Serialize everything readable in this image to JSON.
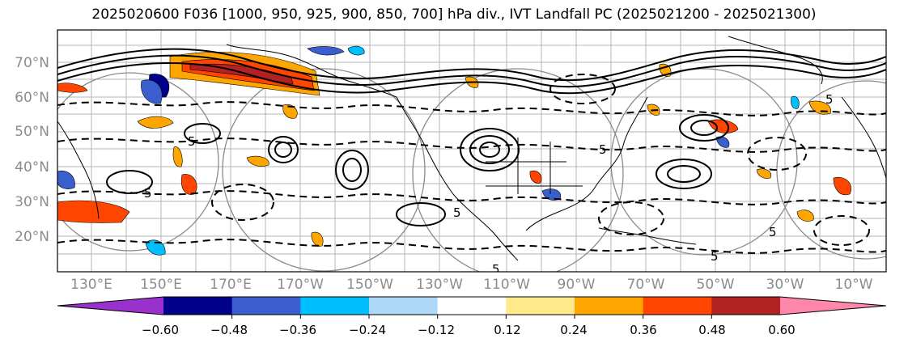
{
  "title": "2025020600 F036 [1000, 950, 925, 900, 850, 700] hPa div., IVT Landfall PC (2025021200 - 2025021300)",
  "lat_labels": [
    "70°N",
    "60°N",
    "50°N",
    "40°N",
    "30°N",
    "20°N"
  ],
  "lon_labels": [
    "130°E",
    "150°E",
    "170°E",
    "170°W",
    "150°W",
    "130°W",
    "110°W",
    "90°W",
    "70°W",
    "50°W",
    "30°W",
    "10°W"
  ],
  "colorbar": {
    "colors": [
      "#9932cc",
      "#00008b",
      "#3a5fcd",
      "#00bfff",
      "#add8f7",
      "#ffffff",
      "#ffe98a",
      "#ffa500",
      "#ff4500",
      "#b22222",
      "#ff88aa"
    ],
    "tick_labels": [
      "−0.60",
      "−0.48",
      "−0.36",
      "−0.24",
      "−0.12",
      "0.12",
      "0.24",
      "0.36",
      "0.48",
      "0.60"
    ]
  },
  "contour_label": "5"
}
